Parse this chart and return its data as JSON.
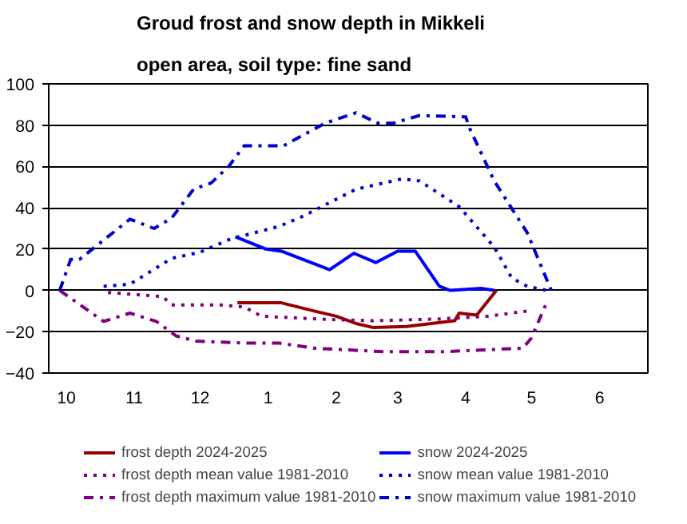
{
  "chart_data": {
    "type": "line",
    "title": "Groud frost and snow depth in Mikkeli",
    "subtitle": "open area, soil type: fine sand",
    "xlim": [
      "2024-10-01",
      "2025-07-01"
    ],
    "xticks": [
      {
        "value": "2024-10-09",
        "label": "10"
      },
      {
        "value": "2024-11-09",
        "label": "11"
      },
      {
        "value": "2024-12-09",
        "label": "12"
      },
      {
        "value": "2025-01-09",
        "label": "1"
      },
      {
        "value": "2025-02-09",
        "label": "2"
      },
      {
        "value": "2025-03-09",
        "label": "3"
      },
      {
        "value": "2025-04-09",
        "label": "4"
      },
      {
        "value": "2025-05-09",
        "label": "5"
      },
      {
        "value": "2025-06-09",
        "label": "6"
      }
    ],
    "ylim": [
      -40,
      100
    ],
    "yticks": [
      -40,
      -20,
      0,
      20,
      40,
      60,
      80,
      100
    ],
    "grid": "y",
    "legend": "bottom",
    "series": [
      {
        "name": "frost depth 2024-2025",
        "color": "#990000",
        "line_style": "solid",
        "x": [
          "2024-12-26",
          "2025-01-15",
          "2025-01-30",
          "2025-02-09",
          "2025-02-18",
          "2025-02-26",
          "2025-03-13",
          "2025-04-04",
          "2025-04-06",
          "2025-04-14",
          "2025-04-23"
        ],
        "values": [
          -6,
          -6,
          -10,
          -12.5,
          -16,
          -18,
          -17.5,
          -14.7,
          -11,
          -12,
          0
        ]
      },
      {
        "name": "snow 2024-2025",
        "color": "#0000ff",
        "line_style": "solid",
        "x": [
          "2024-12-25",
          "2025-01-08",
          "2025-01-15",
          "2025-02-06",
          "2025-02-17",
          "2025-02-27",
          "2025-03-09",
          "2025-03-17",
          "2025-03-28",
          "2025-04-02",
          "2025-04-16",
          "2025-04-22"
        ],
        "values": [
          26,
          20,
          19,
          10,
          18,
          13.5,
          19,
          19,
          2,
          0,
          1,
          0
        ]
      },
      {
        "name": "frost depth mean value 1981-2010",
        "color": "#800080",
        "line_style": "dotted",
        "x": [
          "2024-10-28",
          "2024-11-22",
          "2024-11-26",
          "2024-12-18",
          "2024-12-29",
          "2025-01-06",
          "2025-02-04",
          "2025-02-26",
          "2025-03-29",
          "2025-04-19",
          "2025-05-07"
        ],
        "values": [
          -1,
          -3,
          -7,
          -7,
          -8,
          -12.5,
          -14,
          -14.7,
          -13.8,
          -12.5,
          -10
        ]
      },
      {
        "name": "snow mean value 1981-2010",
        "color": "#0000cc",
        "line_style": "dotted",
        "x": [
          "2024-10-26",
          "2024-11-07",
          "2024-11-26",
          "2024-12-09",
          "2024-12-23",
          "2025-01-14",
          "2025-01-25",
          "2025-02-18",
          "2025-03-11",
          "2025-03-19",
          "2025-04-06",
          "2025-04-22",
          "2025-04-30",
          "2025-05-07",
          "2025-05-16"
        ],
        "values": [
          2,
          3,
          15.5,
          18.5,
          25,
          31,
          36,
          49,
          54,
          53,
          40.6,
          21,
          6,
          2,
          0
        ]
      },
      {
        "name": "frost depth maximum value 1981-2010",
        "color": "#800080",
        "line_style": "dashdot",
        "x": [
          "2024-10-06",
          "2024-10-26",
          "2024-11-07",
          "2024-11-19",
          "2024-11-28",
          "2024-12-07",
          "2024-12-29",
          "2025-01-14",
          "2025-01-30",
          "2025-03-03",
          "2025-03-29",
          "2025-05-05",
          "2025-05-09",
          "2025-05-16"
        ],
        "values": [
          0,
          -15,
          -11,
          -15,
          -22,
          -24.5,
          -25.5,
          -25.5,
          -28,
          -29.7,
          -29.7,
          -28,
          -23,
          -5.5
        ]
      },
      {
        "name": "snow maximum value 1981-2010",
        "color": "#0000cc",
        "line_style": "dashdot",
        "x": [
          "2024-10-06",
          "2024-10-11",
          "2024-10-15",
          "2024-11-07",
          "2024-11-18",
          "2024-11-26",
          "2024-12-06",
          "2024-12-14",
          "2024-12-22",
          "2024-12-29",
          "2025-01-16",
          "2025-02-04",
          "2025-02-18",
          "2025-02-28",
          "2025-03-07",
          "2025-03-19",
          "2025-04-09",
          "2025-04-11",
          "2025-04-22",
          "2025-05-07",
          "2025-05-18"
        ],
        "values": [
          0,
          15,
          15,
          34.5,
          30,
          35,
          49,
          52,
          60,
          70,
          70,
          81,
          86,
          81,
          81,
          84.7,
          84,
          78,
          53,
          28,
          0
        ]
      }
    ]
  }
}
